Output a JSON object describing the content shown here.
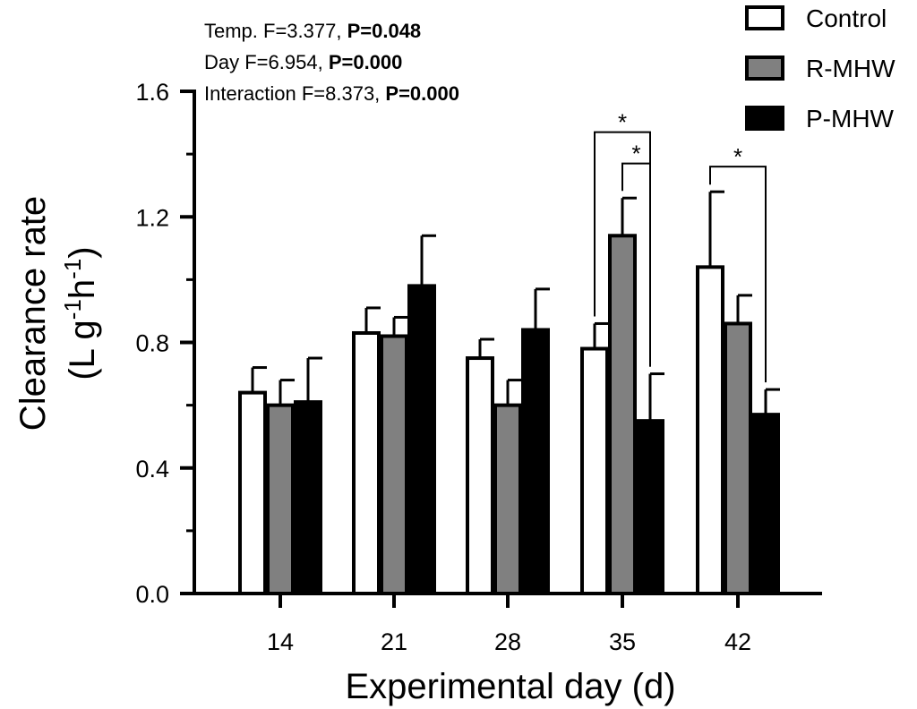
{
  "chart_data": {
    "type": "bar",
    "xlabel": "Experimental day (d)",
    "ylabel_line1": "Clearance rate",
    "ylabel_line2": "(L g-1h-1)",
    "ylim": [
      0,
      1.6
    ],
    "yticks": [
      "0.0",
      "0.4",
      "0.8",
      "1.2",
      "1.6"
    ],
    "categories": [
      "14",
      "21",
      "28",
      "35",
      "42"
    ],
    "series": [
      {
        "name": "Control",
        "color": "#ffffff",
        "values": [
          0.64,
          0.83,
          0.75,
          0.78,
          1.04
        ],
        "errors": [
          0.08,
          0.08,
          0.06,
          0.08,
          0.24
        ]
      },
      {
        "name": "R-MHW",
        "color": "#808080",
        "values": [
          0.6,
          0.82,
          0.6,
          1.14,
          0.86
        ],
        "errors": [
          0.08,
          0.06,
          0.08,
          0.12,
          0.09
        ]
      },
      {
        "name": "P-MHW",
        "color": "#000000",
        "values": [
          0.61,
          0.98,
          0.84,
          0.55,
          0.57
        ],
        "errors": [
          0.14,
          0.16,
          0.13,
          0.15,
          0.08
        ]
      }
    ],
    "stats": [
      {
        "label": "Temp. F=3.377, ",
        "p": "P=0.048"
      },
      {
        "label": "Day F=6.954, ",
        "p": "P=0.000"
      },
      {
        "label": "Interaction F=8.373, ",
        "p": "P=0.000"
      }
    ],
    "significance": [
      {
        "category": "35",
        "from_series": 0,
        "to_series": 2,
        "top": 1.47,
        "label": "*"
      },
      {
        "category": "35",
        "from_series": 1,
        "to_series": 2,
        "top": 1.37,
        "label": "*"
      },
      {
        "category": "42",
        "from_series": 0,
        "to_series": 2,
        "top": 1.36,
        "label": "*"
      }
    ]
  }
}
